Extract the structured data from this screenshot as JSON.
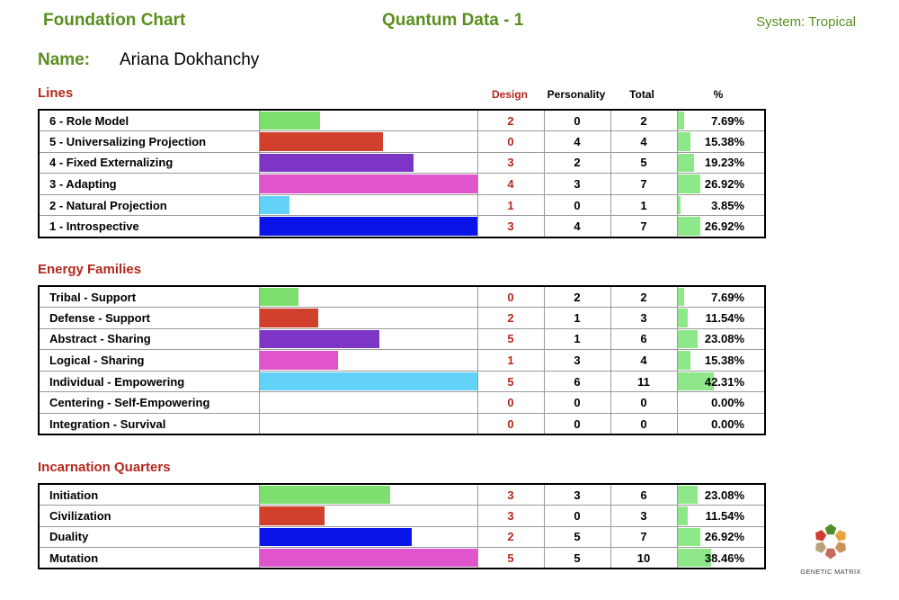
{
  "header": {
    "left_title": "Foundation Chart",
    "mid_title": "Quantum Data - 1",
    "system": "System: Tropical"
  },
  "name": {
    "label": "Name:",
    "value": "Ariana Dokhanchy"
  },
  "columns": {
    "design": "Design",
    "personality": "Personality",
    "total": "Total",
    "pct": "%"
  },
  "sections": [
    {
      "title": "Lines",
      "rows": [
        {
          "label": "6 - Role Model",
          "color": "#7ddf6e",
          "bar_fraction": 0.28,
          "design": "2",
          "personality": "0",
          "total": "2",
          "pct": "7.69%",
          "pct_value": 7.69
        },
        {
          "label": "5 - Universalizing Projection",
          "color": "#d0402d",
          "bar_fraction": 0.57,
          "design": "0",
          "personality": "4",
          "total": "4",
          "pct": "15.38%",
          "pct_value": 15.38
        },
        {
          "label": "4 - Fixed Externalizing",
          "color": "#7d35c6",
          "bar_fraction": 0.71,
          "design": "3",
          "personality": "2",
          "total": "5",
          "pct": "19.23%",
          "pct_value": 19.23
        },
        {
          "label": "3 - Adapting",
          "color": "#e055cc",
          "bar_fraction": 1.0,
          "design": "4",
          "personality": "3",
          "total": "7",
          "pct": "26.92%",
          "pct_value": 26.92
        },
        {
          "label": "2 - Natural Projection",
          "color": "#62d2f8",
          "bar_fraction": 0.14,
          "design": "1",
          "personality": "0",
          "total": "1",
          "pct": "3.85%",
          "pct_value": 3.85
        },
        {
          "label": "1 - Introspective",
          "color": "#0a14e8",
          "bar_fraction": 1.0,
          "design": "3",
          "personality": "4",
          "total": "7",
          "pct": "26.92%",
          "pct_value": 26.92
        }
      ]
    },
    {
      "title": "Energy Families",
      "rows": [
        {
          "label": "Tribal - Support",
          "color": "#7ddf6e",
          "bar_fraction": 0.18,
          "design": "0",
          "personality": "2",
          "total": "2",
          "pct": "7.69%",
          "pct_value": 7.69
        },
        {
          "label": "Defense - Support",
          "color": "#d0402d",
          "bar_fraction": 0.27,
          "design": "2",
          "personality": "1",
          "total": "3",
          "pct": "11.54%",
          "pct_value": 11.54
        },
        {
          "label": "Abstract - Sharing",
          "color": "#7d35c6",
          "bar_fraction": 0.55,
          "design": "5",
          "personality": "1",
          "total": "6",
          "pct": "23.08%",
          "pct_value": 23.08
        },
        {
          "label": "Logical - Sharing",
          "color": "#e055cc",
          "bar_fraction": 0.36,
          "design": "1",
          "personality": "3",
          "total": "4",
          "pct": "15.38%",
          "pct_value": 15.38
        },
        {
          "label": "Individual - Empowering",
          "color": "#62d2f8",
          "bar_fraction": 1.0,
          "design": "5",
          "personality": "6",
          "total": "11",
          "pct": "42.31%",
          "pct_value": 42.31
        },
        {
          "label": "Centering - Self-Empowering",
          "color": "#ffffff",
          "bar_fraction": 0,
          "design": "0",
          "personality": "0",
          "total": "0",
          "pct": "0.00%",
          "pct_value": 0
        },
        {
          "label": "Integration - Survival",
          "color": "#ffffff",
          "bar_fraction": 0,
          "design": "0",
          "personality": "0",
          "total": "0",
          "pct": "0.00%",
          "pct_value": 0
        }
      ]
    },
    {
      "title": "Incarnation Quarters",
      "rows": [
        {
          "label": "Initiation",
          "color": "#7ddf6e",
          "bar_fraction": 0.6,
          "design": "3",
          "personality": "3",
          "total": "6",
          "pct": "23.08%",
          "pct_value": 23.08
        },
        {
          "label": "Civilization",
          "color": "#d0402d",
          "bar_fraction": 0.3,
          "design": "3",
          "personality": "0",
          "total": "3",
          "pct": "11.54%",
          "pct_value": 11.54
        },
        {
          "label": "Duality",
          "color": "#0a14e8",
          "bar_fraction": 0.7,
          "design": "2",
          "personality": "5",
          "total": "7",
          "pct": "26.92%",
          "pct_value": 26.92
        },
        {
          "label": "Mutation",
          "color": "#e055cc",
          "bar_fraction": 1.0,
          "design": "5",
          "personality": "5",
          "total": "10",
          "pct": "38.46%",
          "pct_value": 38.46
        }
      ]
    }
  ],
  "logo": {
    "caption": "GENETIC MATRIX",
    "colors": [
      "#4f8f2b",
      "#e8a23a",
      "#c9935a",
      "#c76a5b",
      "#b9a27a",
      "#cf3b2c"
    ]
  }
}
